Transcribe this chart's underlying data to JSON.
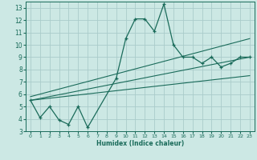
{
  "title": "",
  "xlabel": "Humidex (Indice chaleur)",
  "bg_color": "#cce8e4",
  "grid_color": "#aaccca",
  "line_color": "#1a6b5a",
  "xlim": [
    -0.5,
    23.5
  ],
  "ylim": [
    3,
    13.5
  ],
  "xticks": [
    0,
    1,
    2,
    3,
    4,
    5,
    6,
    7,
    8,
    9,
    10,
    11,
    12,
    13,
    14,
    15,
    16,
    17,
    18,
    19,
    20,
    21,
    22,
    23
  ],
  "yticks": [
    3,
    4,
    5,
    6,
    7,
    8,
    9,
    10,
    11,
    12,
    13
  ],
  "series1_x": [
    0,
    1,
    2,
    3,
    4,
    5,
    6,
    9,
    10,
    11,
    12,
    13,
    14,
    15,
    16,
    17,
    18,
    19,
    20,
    21,
    22,
    23
  ],
  "series1_y": [
    5.5,
    4.1,
    5.0,
    3.9,
    3.55,
    5.0,
    3.3,
    7.3,
    10.5,
    12.1,
    12.1,
    11.1,
    13.3,
    10.0,
    9.0,
    9.0,
    8.5,
    9.0,
    8.2,
    8.5,
    9.0,
    9.0
  ],
  "trend1_x": [
    0,
    23
  ],
  "trend1_y": [
    5.5,
    7.5
  ],
  "trend2_x": [
    0,
    23
  ],
  "trend2_y": [
    5.8,
    10.5
  ],
  "trend3_x": [
    0,
    23
  ],
  "trend3_y": [
    5.5,
    9.0
  ]
}
